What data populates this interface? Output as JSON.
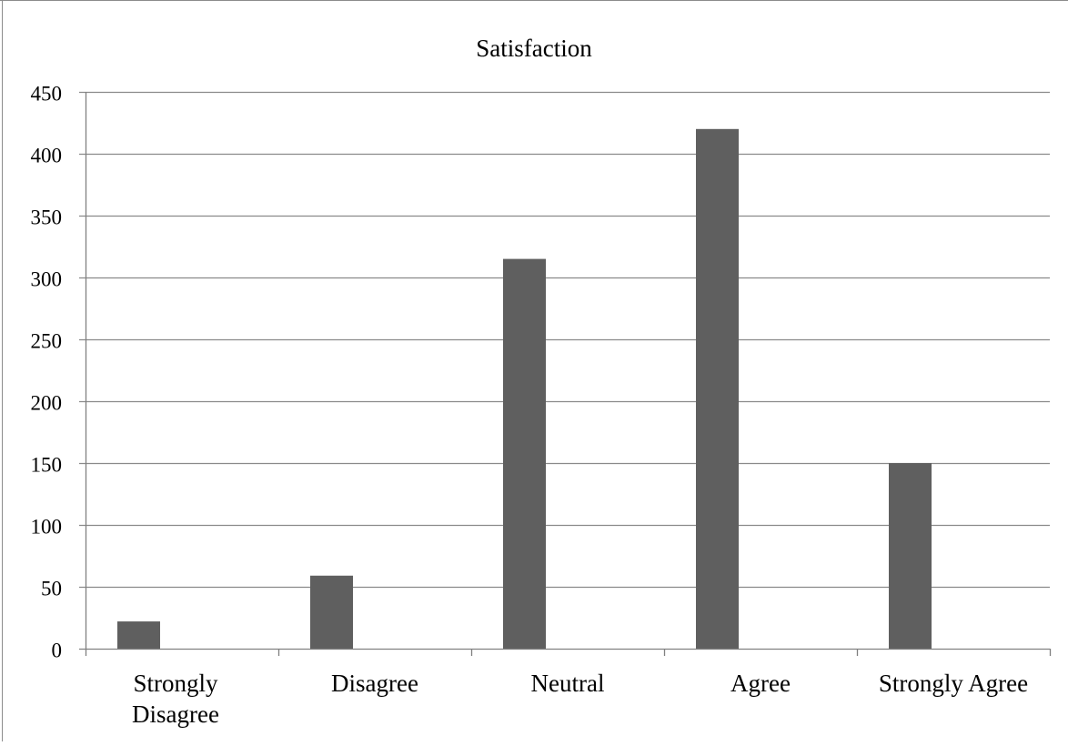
{
  "chart_data": {
    "type": "bar",
    "title": "Satisfaction",
    "categories": [
      [
        "Strongly",
        "Disagree"
      ],
      [
        "Disagree"
      ],
      [
        "Neutral"
      ],
      [
        "Agree"
      ],
      [
        "Strongly Agree"
      ]
    ],
    "values": [
      22,
      59,
      315,
      420,
      150
    ],
    "ylim": [
      0,
      450
    ],
    "yticks": [
      0,
      50,
      100,
      150,
      200,
      250,
      300,
      350,
      400,
      450
    ],
    "grid": true,
    "legend": "none",
    "colors": {
      "bar": "#5f5f5f",
      "grid": "#8a8a8a",
      "axis": "#808080",
      "frame": "#8c8c8c"
    }
  }
}
